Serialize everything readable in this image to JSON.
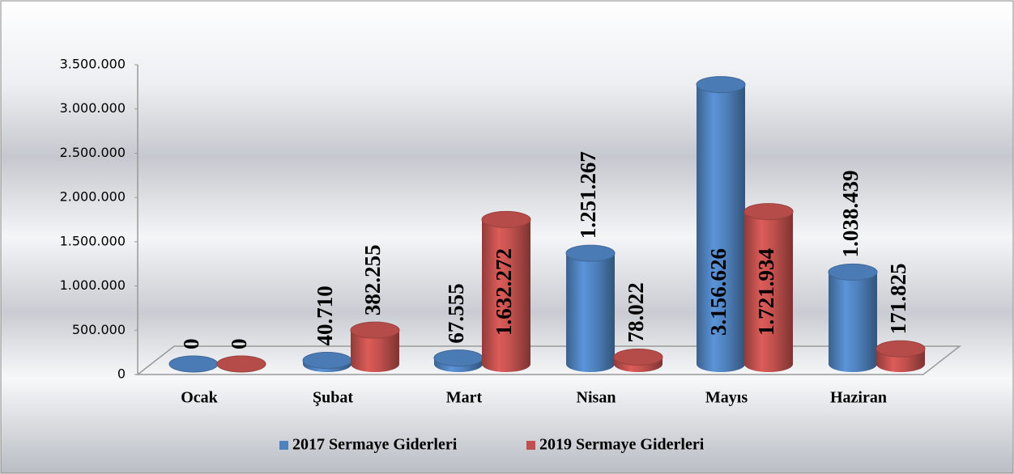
{
  "chart_data": {
    "type": "bar3d",
    "categories": [
      "Ocak",
      "Şubat",
      "Mart",
      "Nisan",
      "Mayıs",
      "Haziran"
    ],
    "series": [
      {
        "name": "2017 Sermaye Giderleri",
        "color": "#4f81bd",
        "values": [
          0,
          40710,
          67555,
          1251267,
          3156626,
          1038439
        ],
        "value_labels": [
          "0",
          "40.710",
          "67.555",
          "1.251.267",
          "3.156.626",
          "1.038.439"
        ]
      },
      {
        "name": "2019 Sermaye Giderleri",
        "color": "#c0504d",
        "values": [
          0,
          382255,
          1632272,
          78022,
          1721934,
          171825
        ],
        "value_labels": [
          "0",
          "382.255",
          "1.632.272",
          "78.022",
          "1.721.934",
          "171.825"
        ]
      }
    ],
    "ylim": [
      0,
      3500000
    ],
    "yticks": [
      0,
      {
        "value": 500000,
        "label": "500.000"
      },
      {
        "value": 1000000,
        "label": "1.000.000"
      },
      {
        "value": 1500000,
        "label": "1.500.000"
      },
      {
        "value": 2000000,
        "label": "2.000.000"
      },
      {
        "value": 2500000,
        "label": "2.500.000"
      },
      {
        "value": 3000000,
        "label": "3.000.000"
      },
      {
        "value": 3500000,
        "label": "3.500.000"
      }
    ],
    "legend": "bottom"
  }
}
